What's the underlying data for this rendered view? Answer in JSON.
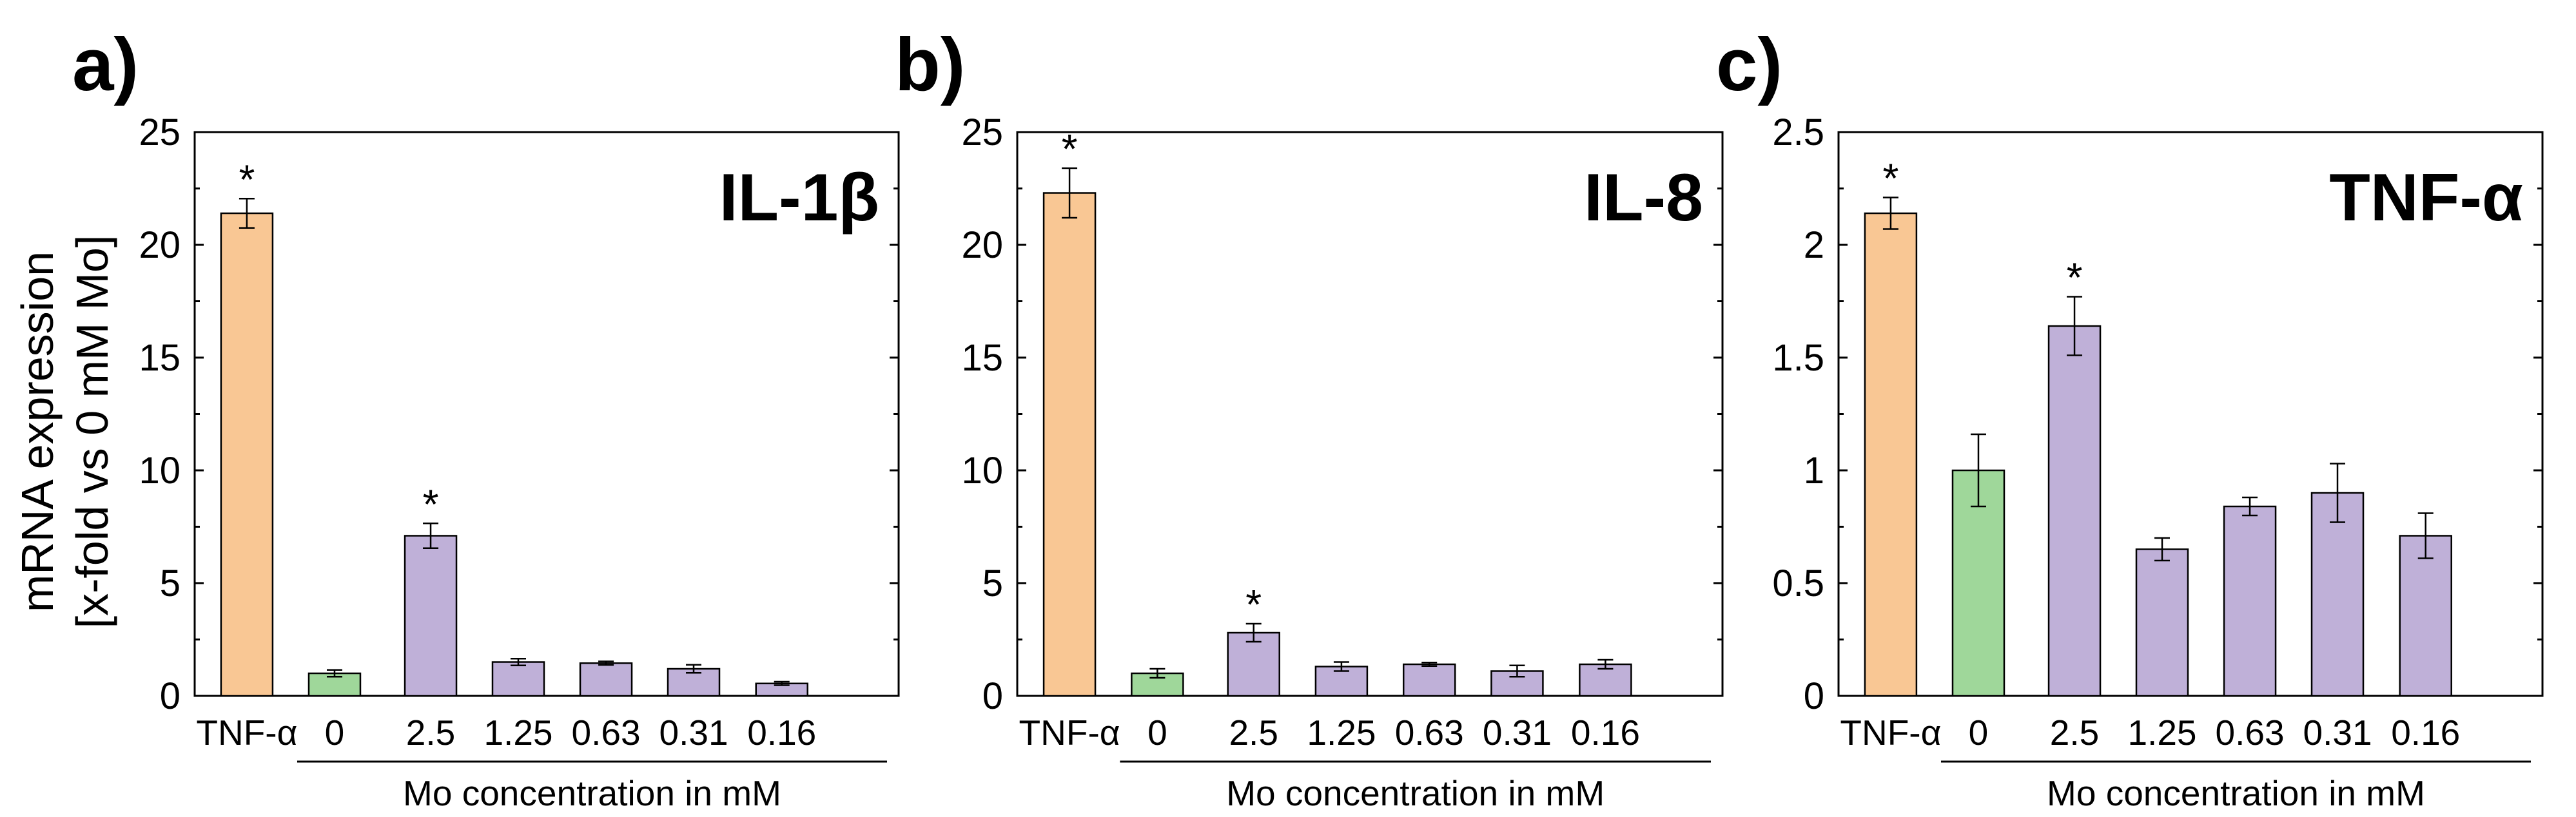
{
  "ylabel_line1": "mRNA expression",
  "ylabel_line2": "[x-fold vs 0 mM Mo]",
  "colors": {
    "tnf": "#f9c794",
    "control": "#9fd79a",
    "mo": "#bfb0d8",
    "outline": "#000000"
  },
  "chart_data": [
    {
      "type": "bar",
      "panel": "a)",
      "title": "IL-1β",
      "xlabel": "Mo concentration in mM",
      "ylabel": "mRNA expression [x-fold vs 0 mM Mo]",
      "ylim": [
        0,
        25
      ],
      "yticks": [
        0,
        5,
        10,
        15,
        20,
        25
      ],
      "ytick_labels": [
        "0",
        "5",
        "10",
        "15",
        "20",
        "25"
      ],
      "categories": [
        "TNF-α",
        "0",
        "2.5",
        "1.25",
        "0.63",
        "0.31",
        "0.16"
      ],
      "values": [
        21.4,
        1.0,
        7.1,
        1.5,
        1.45,
        1.2,
        0.55
      ],
      "errors": [
        0.65,
        0.15,
        0.55,
        0.15,
        0.08,
        0.18,
        0.08
      ],
      "significant": [
        true,
        false,
        true,
        false,
        false,
        false,
        false
      ],
      "significance_marker": "*"
    },
    {
      "type": "bar",
      "panel": "b)",
      "title": "IL-8",
      "xlabel": "Mo concentration in mM",
      "ylabel": "mRNA expression [x-fold vs 0 mM Mo]",
      "ylim": [
        0,
        25
      ],
      "yticks": [
        0,
        5,
        10,
        15,
        20,
        25
      ],
      "ytick_labels": [
        "0",
        "5",
        "10",
        "15",
        "20",
        "25"
      ],
      "categories": [
        "TNF-α",
        "0",
        "2.5",
        "1.25",
        "0.63",
        "0.31",
        "0.16"
      ],
      "values": [
        22.3,
        1.0,
        2.8,
        1.3,
        1.4,
        1.1,
        1.4
      ],
      "errors": [
        1.1,
        0.2,
        0.4,
        0.2,
        0.08,
        0.25,
        0.2
      ],
      "significant": [
        true,
        false,
        true,
        false,
        false,
        false,
        false
      ],
      "significance_marker": "*"
    },
    {
      "type": "bar",
      "panel": "c)",
      "title": "TNF-α",
      "xlabel": "Mo concentration in mM",
      "ylabel": "mRNA expression [x-fold vs 0 mM Mo]",
      "ylim": [
        0,
        2.5
      ],
      "yticks": [
        0,
        0.5,
        1,
        1.5,
        2,
        2.5
      ],
      "ytick_labels": [
        "0",
        "0.5",
        "1",
        "1.5",
        "2",
        "2.5"
      ],
      "categories": [
        "TNF-α",
        "0",
        "2.5",
        "1.25",
        "0.63",
        "0.31",
        "0.16"
      ],
      "values": [
        2.14,
        1.0,
        1.64,
        0.65,
        0.84,
        0.9,
        0.71
      ],
      "errors": [
        0.07,
        0.16,
        0.13,
        0.05,
        0.04,
        0.13,
        0.1
      ],
      "significant": [
        true,
        false,
        true,
        false,
        false,
        false,
        false
      ],
      "significance_marker": "*"
    }
  ]
}
